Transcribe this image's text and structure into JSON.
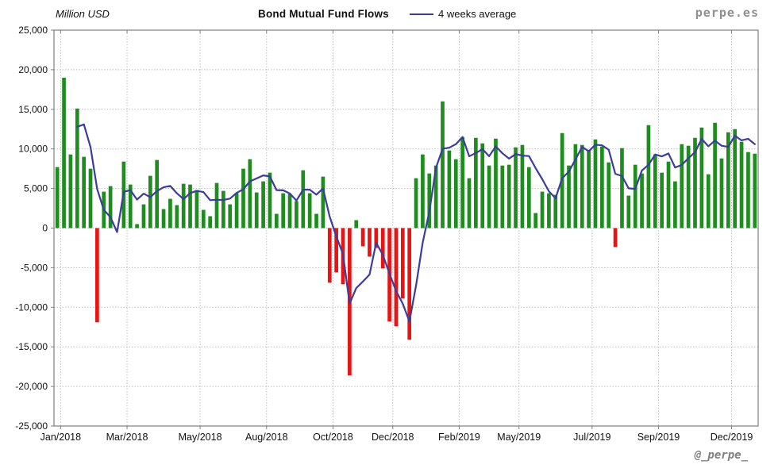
{
  "header": {
    "units_label": "Million USD",
    "title": "Bond Mutual Fund Flows",
    "legend_label": "4 weeks average",
    "brand": "perpe.es"
  },
  "footer": {
    "watermark": "@_perpe_"
  },
  "chart_data": {
    "type": "bar",
    "overlay": "line",
    "title": "Bond Mutual Fund Flows",
    "ylabel": "Million USD",
    "legend": [
      "4 weeks average"
    ],
    "ylim": [
      -25000,
      25000
    ],
    "ytick_step": 5000,
    "grid": true,
    "average_window": 4,
    "x_ticks": [
      {
        "label": "Jan/2018",
        "week": 1
      },
      {
        "label": "Mar/2018",
        "week": 11
      },
      {
        "label": "May/2018",
        "week": 22
      },
      {
        "label": "Aug/2018",
        "week": 32
      },
      {
        "label": "Oct/2018",
        "week": 42
      },
      {
        "label": "Dec/2018",
        "week": 51
      },
      {
        "label": "Feb/2019",
        "week": 61
      },
      {
        "label": "May/2019",
        "week": 70
      },
      {
        "label": "Jul/2019",
        "week": 81
      },
      {
        "label": "Sep/2019",
        "week": 91
      },
      {
        "label": "Dec/2019",
        "week": 102
      }
    ],
    "weekly_flows": [
      7700,
      19000,
      9300,
      15100,
      9000,
      7500,
      -11900,
      4600,
      5300,
      0,
      8400,
      5500,
      500,
      3000,
      6600,
      8600,
      2400,
      3700,
      2900,
      5600,
      5500,
      4800,
      2300,
      1500,
      5700,
      4700,
      3000,
      4400,
      7500,
      8700,
      4500,
      5900,
      7000,
      1800,
      4400,
      4300,
      3400,
      7300,
      4400,
      1800,
      6500,
      -6900,
      -5600,
      -7100,
      -18600,
      1000,
      -2300,
      -3600,
      -2500,
      -5100,
      -11800,
      -12400,
      -8900,
      -14100,
      6300,
      9300,
      6900,
      7900,
      16000,
      9800,
      8700,
      11500,
      6300,
      11400,
      10700,
      7900,
      11300,
      7900,
      8000,
      10200,
      10500,
      7700,
      1900,
      4600,
      4400,
      4200,
      12000,
      7900,
      10600,
      10500,
      9800,
      11200,
      10300,
      8300,
      -2400,
      10100,
      4100,
      8000,
      6900,
      13000,
      9300,
      7000,
      8400,
      5900,
      10600,
      10400,
      11400,
      12700,
      6800,
      13300,
      8800,
      12100,
      12500,
      10900,
      9600,
      9400
    ],
    "colors": {
      "positive": "#1e8c1e",
      "negative": "#e81414",
      "average_line": "#3c3c9c",
      "grid": "#bfbfbf",
      "axis": "#7f7f7f"
    }
  }
}
